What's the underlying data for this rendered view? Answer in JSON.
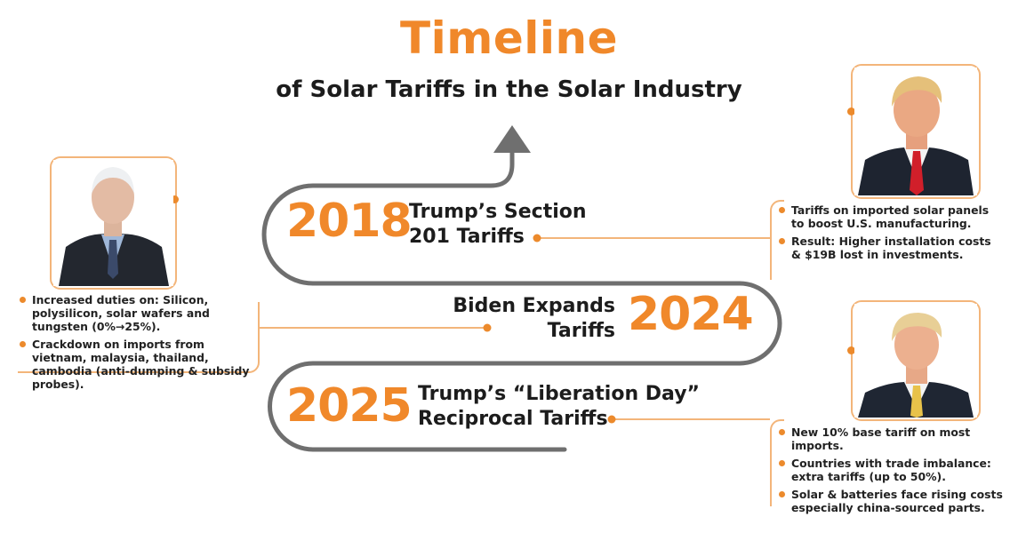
{
  "header": {
    "title": "Timeline",
    "subtitle": "of Solar Tariffs in the Solar Industry"
  },
  "milestones": [
    {
      "year": "2018",
      "event_line1": "Trump’s Section",
      "event_line2": "201 Tariffs",
      "notes": [
        "Tariffs on imported solar panels to boost U.S. manufacturing.",
        "Result: Higher installation costs & $19B lost in investments."
      ]
    },
    {
      "year": "2024",
      "event_line1": "Biden Expands",
      "event_line2": "Tariffs",
      "notes": [
        "Increased duties on: Silicon, polysilicon, solar wafers and tungsten (0%→25%).",
        "Crackdown on imports from vietnam, malaysia, thailand, cambodia (anti-dumping & subsidy probes)."
      ]
    },
    {
      "year": "2025",
      "event_line1": "Trump’s “Liberation Day”",
      "event_line2": "Reciprocal Tariffs",
      "notes": [
        "New 10% base tariff on most imports.",
        "Countries with trade imbalance: extra tariffs (up to 50%).",
        "Solar & batteries face rising costs especially china-sourced parts."
      ]
    }
  ],
  "colors": {
    "accent": "#f0882a",
    "road": "#6f6f6f",
    "frame": "#f3b57a"
  }
}
